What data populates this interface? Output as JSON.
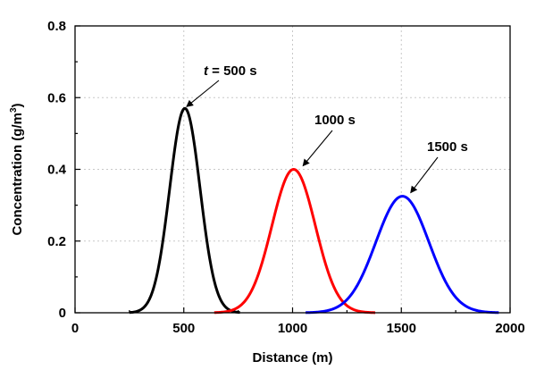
{
  "chart_data": {
    "type": "line",
    "xlabel": "Distance (m)",
    "ylabel": "Concentration (g/m",
    "ylabel_sup": "3",
    "ylabel_close": ")",
    "xlim": [
      0,
      2000
    ],
    "ylim": [
      0,
      0.8
    ],
    "x_ticks": [
      0,
      500,
      1000,
      1500,
      2000
    ],
    "x_tick_labels": [
      "0",
      "500",
      "1000",
      "1500",
      "2000"
    ],
    "y_ticks": [
      0,
      0.2,
      0.4,
      0.6,
      0.8
    ],
    "y_tick_labels": [
      "0",
      "0.2",
      "0.4",
      "0.6",
      "0.8"
    ],
    "grid": true,
    "series": [
      {
        "name": "500 s",
        "color": "#000000",
        "peak_x": 505,
        "peak_y": 0.57,
        "sigma": 70,
        "x_range": [
          250,
          760
        ]
      },
      {
        "name": "1000 s",
        "color": "#ff0000",
        "peak_x": 1005,
        "peak_y": 0.4,
        "sigma": 100,
        "x_range": [
          640,
          1380
        ]
      },
      {
        "name": "1500 s",
        "color": "#0000ff",
        "peak_x": 1505,
        "peak_y": 0.325,
        "sigma": 122,
        "x_range": [
          1060,
          1950
        ]
      }
    ],
    "annotations": [
      {
        "series": "500 s",
        "prefix": "t",
        "text": " = 500 s",
        "arrow_x": 505,
        "arrow_y": 0.57
      },
      {
        "series": "1000 s",
        "prefix": "",
        "text": "1000 s",
        "arrow_x": 1040,
        "arrow_y": 0.405
      },
      {
        "series": "1500 s",
        "prefix": "",
        "text": "1500 s",
        "arrow_x": 1535,
        "arrow_y": 0.33
      }
    ]
  }
}
